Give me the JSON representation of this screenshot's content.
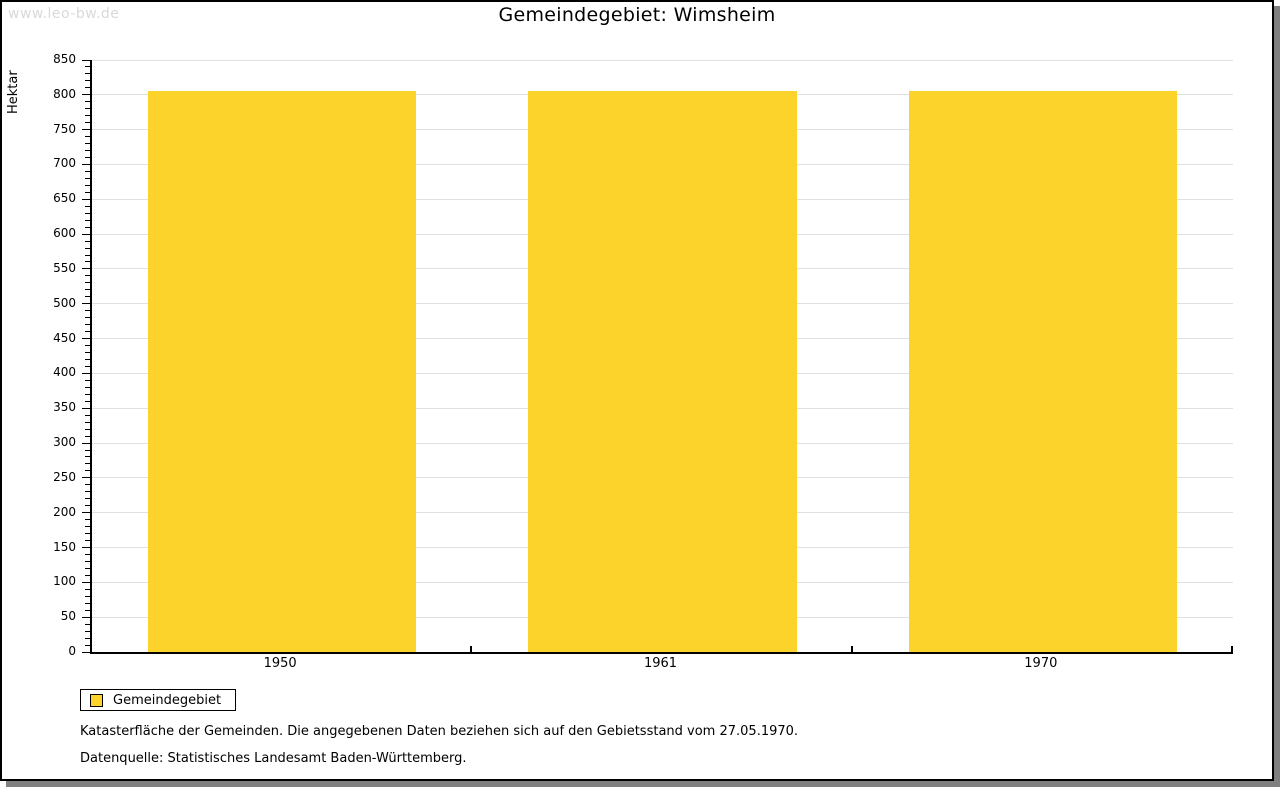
{
  "watermark": "www.leo-bw.de",
  "title": "Gemeindegebiet: Wimsheim",
  "chart_data": {
    "type": "bar",
    "title": "Gemeindegebiet: Wimsheim",
    "categories": [
      "1950",
      "1961",
      "1970"
    ],
    "series": [
      {
        "name": "Gemeindegebiet",
        "color": "#FCD32B",
        "values": [
          806,
          806,
          806
        ]
      }
    ],
    "xlabel": "",
    "ylabel": "Hektar",
    "ylim": [
      0,
      850
    ],
    "ytick_major": 50,
    "ytick_minor": 10,
    "grid": true,
    "gridline_color": "#e0e0e0",
    "legend_position": "bottom-left"
  },
  "legend": {
    "items": [
      {
        "label": "Gemeindegebiet",
        "color": "#FCD32B"
      }
    ]
  },
  "notes": {
    "line1": "Katasterfläche der Gemeinden. Die angegebenen Daten beziehen sich auf den Gebietsstand vom 27.05.1970.",
    "line2": "Datenquelle: Statistisches Landesamt Baden-Württemberg."
  },
  "colors": {
    "bar": "#FCD32B",
    "grid": "#e0e0e0",
    "axis": "#000000",
    "watermark": "#d9d9d9",
    "window_shadow": "#808080"
  }
}
